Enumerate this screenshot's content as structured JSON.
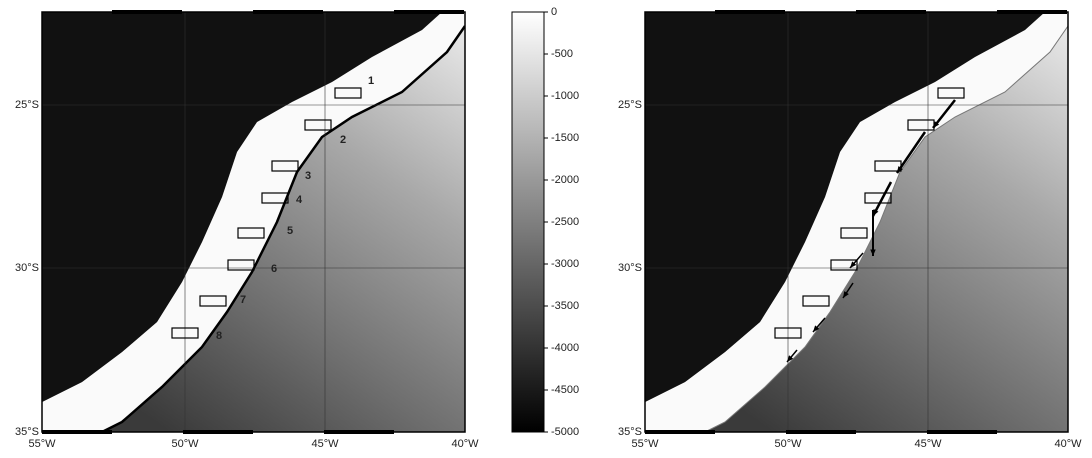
{
  "maps": [
    {
      "lat_ticks": [
        "25°S",
        "30°S",
        "35°S"
      ],
      "lon_ticks": [
        "55°W",
        "50°W",
        "45°W",
        "40°W"
      ],
      "box_labels": [
        "1",
        "2",
        "3",
        "4",
        "5",
        "6",
        "7",
        "8"
      ]
    },
    {
      "lat_ticks": [
        "25°S",
        "30°S",
        "35°S"
      ],
      "lon_ticks": [
        "55°W",
        "50°W",
        "45°W",
        "40°W"
      ]
    }
  ],
  "colorbar": {
    "range": [
      0,
      -5000
    ],
    "ticks": [
      0,
      -500,
      -1000,
      -1500,
      -2000,
      -2500,
      -3000,
      -3500,
      -4000,
      -4500,
      -5000
    ]
  }
}
